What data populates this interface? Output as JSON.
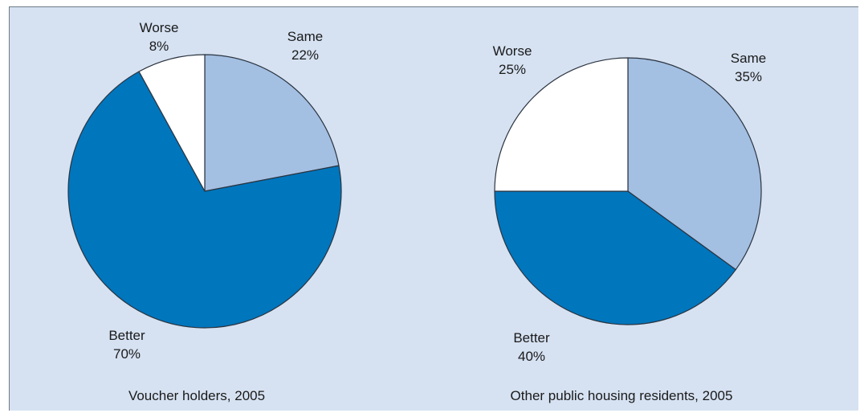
{
  "chart_data": [
    {
      "type": "pie",
      "title": "Voucher holders, 2005",
      "slices": [
        {
          "label": "Same",
          "value": 22,
          "value_label": "22%",
          "color": "#a3bfe2"
        },
        {
          "label": "Better",
          "value": 70,
          "value_label": "70%",
          "color": "#0076bd"
        },
        {
          "label": "Worse",
          "value": 8,
          "value_label": "8%",
          "color": "#ffffff"
        }
      ]
    },
    {
      "type": "pie",
      "title": "Other public housing residents, 2005",
      "slices": [
        {
          "label": "Same",
          "value": 35,
          "value_label": "35%",
          "color": "#a3bfe2"
        },
        {
          "label": "Better",
          "value": 40,
          "value_label": "40%",
          "color": "#0076bd"
        },
        {
          "label": "Worse",
          "value": 25,
          "value_label": "25%",
          "color": "#ffffff"
        }
      ]
    }
  ],
  "colors": {
    "background": "#d6e2f2",
    "same": "#a3bfe2",
    "better": "#0076bd",
    "worse": "#ffffff",
    "edge": "#2b3440"
  }
}
